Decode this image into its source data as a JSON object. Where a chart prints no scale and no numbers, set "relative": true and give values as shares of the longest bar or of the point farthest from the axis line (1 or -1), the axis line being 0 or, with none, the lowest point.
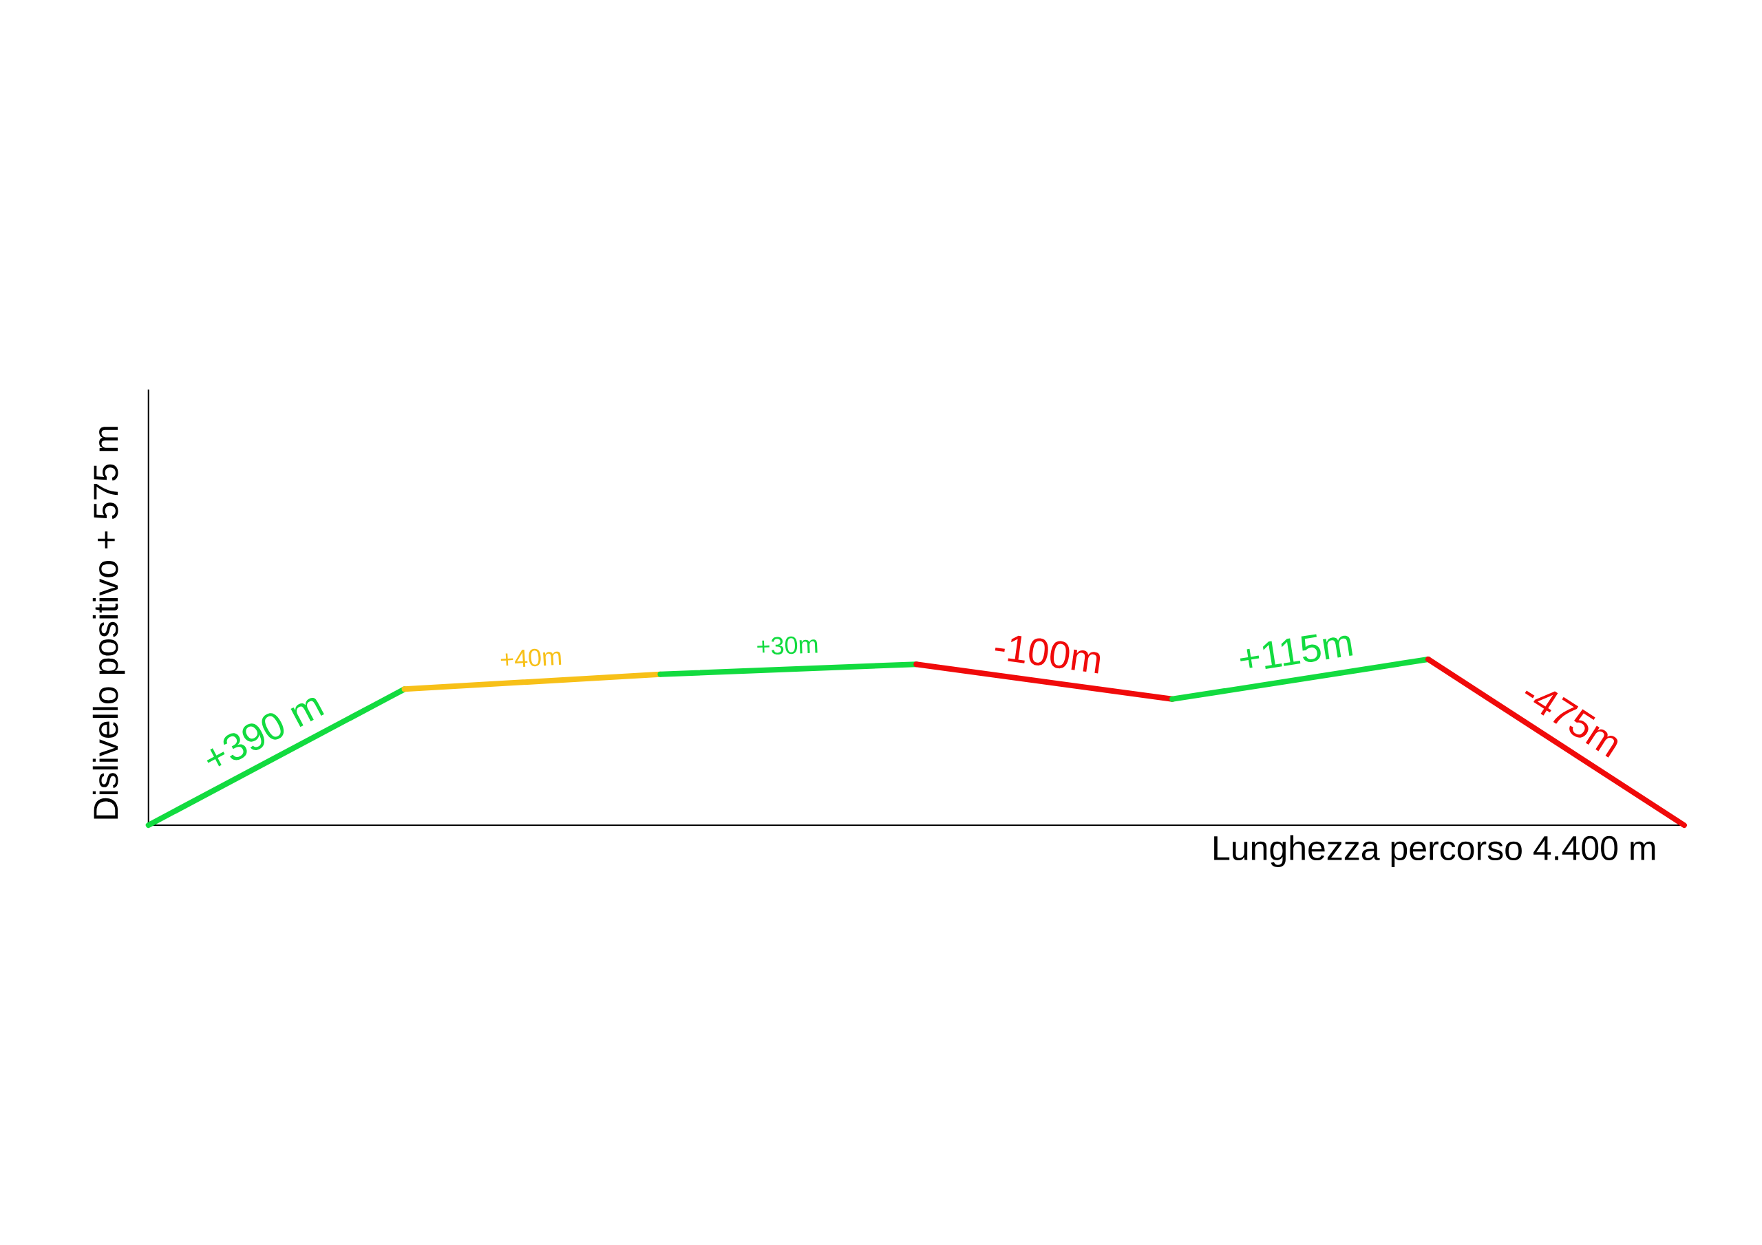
{
  "chart_data": {
    "type": "line",
    "relative": true,
    "xlabel": "Lunghezza percorso 4.400 m",
    "ylabel": "Dislivello positivo + 575 m",
    "tick_labels": false,
    "categories": [
      null,
      null,
      null,
      null,
      null,
      null,
      null
    ],
    "series": [
      {
        "name": "+390 m",
        "color": "#12db3f",
        "values": [
          0,
          0.82,
          null,
          null,
          null,
          null,
          null
        ]
      },
      {
        "name": "+40m",
        "color": "#f7c018",
        "values": [
          null,
          0.82,
          0.91,
          null,
          null,
          null,
          null
        ]
      },
      {
        "name": "+30m",
        "color": "#12db3f",
        "values": [
          null,
          null,
          0.91,
          0.97,
          null,
          null,
          null
        ]
      },
      {
        "name": "-100m",
        "color": "#f00a0a",
        "values": [
          null,
          null,
          null,
          0.97,
          0.76,
          null,
          null
        ]
      },
      {
        "name": "+115m",
        "color": "#12db3f",
        "values": [
          null,
          null,
          null,
          null,
          0.76,
          1,
          null
        ]
      },
      {
        "name": "-475m",
        "color": "#f00a0a",
        "values": [
          null,
          null,
          null,
          null,
          null,
          1,
          0
        ]
      }
    ]
  }
}
